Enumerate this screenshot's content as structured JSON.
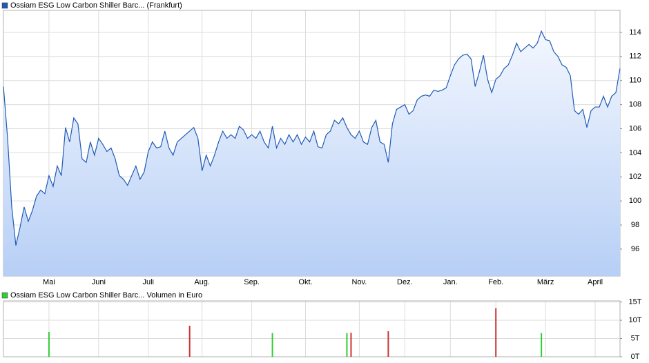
{
  "chart_data": [
    {
      "type": "line",
      "categories": [
        null,
        null,
        null,
        null,
        null,
        null,
        null,
        null,
        null,
        null,
        null,
        "Mai",
        null,
        null,
        null,
        null,
        null,
        null,
        null,
        null,
        null,
        null,
        null,
        "Juni",
        null,
        null,
        null,
        null,
        null,
        null,
        null,
        null,
        null,
        null,
        null,
        "Juli",
        null,
        null,
        null,
        null,
        null,
        null,
        null,
        null,
        null,
        null,
        null,
        null,
        "Aug.",
        null,
        null,
        null,
        null,
        null,
        null,
        null,
        null,
        null,
        null,
        null,
        "Sep.",
        null,
        null,
        null,
        null,
        null,
        null,
        null,
        null,
        null,
        null,
        null,
        null,
        "Okt.",
        null,
        null,
        null,
        null,
        null,
        null,
        null,
        null,
        null,
        null,
        null,
        null,
        "Nov.",
        null,
        null,
        null,
        null,
        null,
        null,
        null,
        null,
        null,
        null,
        "Dez.",
        null,
        null,
        null,
        null,
        null,
        null,
        null,
        null,
        null,
        null,
        "Jan.",
        null,
        null,
        null,
        null,
        null,
        null,
        null,
        null,
        null,
        null,
        "Feb.",
        null,
        null,
        null,
        null,
        null,
        null,
        null,
        null,
        null,
        null,
        null,
        "März",
        null,
        null,
        null,
        null,
        null,
        null,
        null,
        null,
        null,
        null,
        null,
        "April",
        null,
        null,
        null,
        null,
        null,
        null
      ],
      "series": [
        {
          "name": "Ossiam ESG Low Carbon Shiller Barc... (Frankfurt)",
          "color": "#1f5bb5",
          "values": [
            109.5,
            105.2,
            99.5,
            96.3,
            97.8,
            99.5,
            98.3,
            99.2,
            100.4,
            100.9,
            100.6,
            102.1,
            101.2,
            102.9,
            102.1,
            106.1,
            104.9,
            106.9,
            106.4,
            103.5,
            103.2,
            104.9,
            103.8,
            105.2,
            104.7,
            104.1,
            104.4,
            103.5,
            102.1,
            101.8,
            101.3,
            102.1,
            102.9,
            101.8,
            102.4,
            104.1,
            104.9,
            104.4,
            104.5,
            105.8,
            104.4,
            103.8,
            104.9,
            105.2,
            105.5,
            105.8,
            106.1,
            105.2,
            102.5,
            103.8,
            102.9,
            103.8,
            104.9,
            105.8,
            105.2,
            105.5,
            105.2,
            106.2,
            105.9,
            105.2,
            105.5,
            105.2,
            105.8,
            104.9,
            104.4,
            106.2,
            104.4,
            105.2,
            104.7,
            105.5,
            104.9,
            105.5,
            104.7,
            105.3,
            104.9,
            105.8,
            104.5,
            104.4,
            105.5,
            105.8,
            106.7,
            106.4,
            106.9,
            106.1,
            105.5,
            105.2,
            105.8,
            104.9,
            104.7,
            106.1,
            106.7,
            104.9,
            104.7,
            103.2,
            106.4,
            107.6,
            107.8,
            108.0,
            107.2,
            107.5,
            108.4,
            108.7,
            108.8,
            108.7,
            109.2,
            109.1,
            109.2,
            109.4,
            110.4,
            111.3,
            111.8,
            112.1,
            112.2,
            111.8,
            109.5,
            110.7,
            112.1,
            110.1,
            109.0,
            110.1,
            110.4,
            111.0,
            111.3,
            112.1,
            113.1,
            112.4,
            112.7,
            113.0,
            112.7,
            113.1,
            114.1,
            113.4,
            113.3,
            112.4,
            112.0,
            111.3,
            111.1,
            110.4,
            107.5,
            107.2,
            107.6,
            106.1,
            107.5,
            107.8,
            107.8,
            108.7,
            107.8,
            108.7,
            109.0,
            111.0
          ]
        }
      ],
      "ylim": [
        93.76,
        115.83
      ],
      "yticks": [
        96,
        98,
        100,
        102,
        104,
        106,
        108,
        110,
        112,
        114
      ],
      "grid": true
    },
    {
      "type": "bar",
      "series": [
        {
          "name": "Ossiam ESG Low Carbon Shiller Barc... Volumen in Euro",
          "color": "#33cc33",
          "values": [
            null,
            null,
            null,
            null,
            null,
            null,
            null,
            null,
            null,
            null,
            null,
            6.8,
            null,
            null,
            null,
            null,
            null,
            null,
            null,
            null,
            null,
            null,
            null,
            null,
            null,
            null,
            null,
            null,
            null,
            null,
            null,
            null,
            null,
            null,
            null,
            null,
            null,
            null,
            null,
            null,
            null,
            null,
            null,
            null,
            null,
            8.5,
            null,
            null,
            null,
            null,
            null,
            null,
            null,
            null,
            null,
            null,
            null,
            null,
            null,
            null,
            null,
            null,
            null,
            null,
            null,
            6.5,
            null,
            null,
            null,
            null,
            null,
            null,
            null,
            null,
            null,
            null,
            null,
            null,
            null,
            null,
            null,
            null,
            null,
            6.5,
            6.6,
            null,
            null,
            null,
            null,
            null,
            null,
            null,
            null,
            7.0,
            null,
            null,
            null,
            null,
            null,
            null,
            null,
            null,
            null,
            null,
            null,
            null,
            null,
            null,
            null,
            null,
            null,
            null,
            null,
            null,
            null,
            null,
            null,
            null,
            null,
            13.3,
            null,
            null,
            null,
            null,
            null,
            null,
            null,
            null,
            null,
            null,
            6.5,
            null,
            null,
            null,
            null,
            null,
            null,
            null,
            null,
            null,
            null,
            null,
            null,
            null,
            null,
            null,
            null,
            null,
            null,
            null
          ],
          "colors": [
            null,
            null,
            null,
            null,
            null,
            null,
            null,
            null,
            null,
            null,
            null,
            "#33cc33",
            null,
            null,
            null,
            null,
            null,
            null,
            null,
            null,
            null,
            null,
            null,
            null,
            null,
            null,
            null,
            null,
            null,
            null,
            null,
            null,
            null,
            null,
            null,
            null,
            null,
            null,
            null,
            null,
            null,
            null,
            null,
            null,
            null,
            "#cc3333",
            null,
            null,
            null,
            null,
            null,
            null,
            null,
            null,
            null,
            null,
            null,
            null,
            null,
            null,
            null,
            null,
            null,
            null,
            null,
            "#33cc33",
            null,
            null,
            null,
            null,
            null,
            null,
            null,
            null,
            null,
            null,
            null,
            null,
            null,
            null,
            null,
            null,
            null,
            "#33cc33",
            "#cc3333",
            null,
            null,
            null,
            null,
            null,
            null,
            null,
            null,
            "#cc3333",
            null,
            null,
            null,
            null,
            null,
            null,
            null,
            null,
            null,
            null,
            null,
            null,
            null,
            null,
            null,
            null,
            null,
            null,
            null,
            null,
            null,
            null,
            null,
            null,
            null,
            "#cc3333",
            null,
            null,
            null,
            null,
            null,
            null,
            null,
            null,
            null,
            null,
            "#33cc33",
            null,
            null,
            null,
            null,
            null,
            null,
            null,
            null,
            null,
            null,
            null,
            null,
            null,
            null,
            null,
            null,
            null,
            null,
            null
          ]
        }
      ],
      "ylim": [
        0,
        15.3
      ],
      "yticks": [
        {
          "value": 0,
          "label": "0T"
        },
        {
          "value": 5,
          "label": "5T"
        },
        {
          "value": 10,
          "label": "10T"
        },
        {
          "value": 15,
          "label": "15T"
        }
      ],
      "grid": true
    }
  ]
}
